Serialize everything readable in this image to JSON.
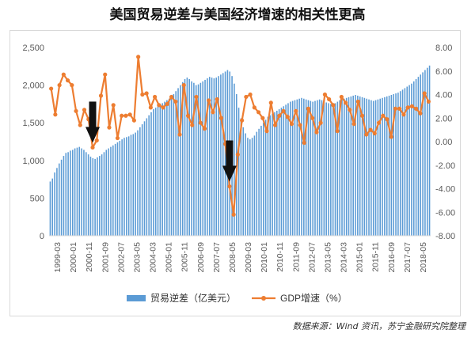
{
  "title": "美国贸易逆差与美国经济增速的相关性更高",
  "source": "数据来源：Wind 资讯，苏宁金融研究院整理",
  "colors": {
    "bar": "#5B9BD5",
    "line": "#ED7D31",
    "axis": "#595959",
    "grid": "#d9d9d9",
    "arrow": "#111111"
  },
  "chart_data": {
    "type": "bar",
    "grid": false,
    "legend": "bottom",
    "left_axis": {
      "ylim": [
        0,
        2500
      ],
      "ticks": [
        "0",
        "500",
        "1,000",
        "1,500",
        "2,000",
        "2,500"
      ]
    },
    "right_axis": {
      "ylim": [
        -8,
        8
      ],
      "ticks": [
        "-8.00",
        "-6.00",
        "-4.00",
        "-2.00",
        "0.00",
        "2.00",
        "4.00",
        "6.00",
        "8.00"
      ]
    },
    "x_tick_labels": [
      "1999-03",
      "2000-01",
      "2000-11",
      "2001-09",
      "2002-07",
      "2003-05",
      "2004-03",
      "2005-01",
      "2005-11",
      "2006-09",
      "2007-07",
      "2008-05",
      "2009-03",
      "2010-01",
      "2010-11",
      "2011-09",
      "2012-07",
      "2013-05",
      "2014-03",
      "2015-01",
      "2015-11",
      "2016-09",
      "2017-07",
      "2018-05"
    ],
    "series": [
      {
        "name": "贸易逆差（亿美元）",
        "axis": "left",
        "values": [
          720,
          760,
          840,
          900,
          960,
          1010,
          1060,
          1100,
          1110,
          1130,
          1140,
          1160,
          1170,
          1180,
          1160,
          1140,
          1110,
          1080,
          1050,
          1030,
          1020,
          1040,
          1060,
          1080,
          1110,
          1140,
          1160,
          1180,
          1200,
          1220,
          1240,
          1260,
          1280,
          1300,
          1310,
          1320,
          1340,
          1350,
          1370,
          1400,
          1440,
          1480,
          1520,
          1560,
          1600,
          1640,
          1680,
          1700,
          1720,
          1740,
          1760,
          1780,
          1800,
          1820,
          1840,
          1880,
          1920,
          1960,
          2000,
          2040,
          2080,
          2100,
          2080,
          2050,
          2030,
          2000,
          2010,
          2030,
          2050,
          2070,
          2090,
          2110,
          2100,
          2090,
          2100,
          2120,
          2140,
          2160,
          2180,
          2200,
          2180,
          2120,
          2020,
          1880,
          1700,
          1560,
          1440,
          1360,
          1300,
          1280,
          1300,
          1330,
          1380,
          1420,
          1460,
          1500,
          1540,
          1580,
          1600,
          1620,
          1640,
          1660,
          1680,
          1700,
          1720,
          1740,
          1760,
          1780,
          1790,
          1800,
          1810,
          1820,
          1830,
          1820,
          1810,
          1800,
          1790,
          1780,
          1790,
          1800,
          1810,
          1800,
          1790,
          1770,
          1760,
          1750,
          1750,
          1760,
          1780,
          1800,
          1810,
          1820,
          1830,
          1840,
          1850,
          1860,
          1870,
          1860,
          1850,
          1840,
          1830,
          1820,
          1810,
          1800,
          1790,
          1800,
          1810,
          1820,
          1830,
          1840,
          1850,
          1860,
          1870,
          1880,
          1890,
          1900,
          1920,
          1940,
          1960,
          1980,
          2000,
          2020,
          2050,
          2080,
          2110,
          2140,
          2170,
          2200,
          2230,
          2260
        ]
      },
      {
        "name": "GDP增速（%）",
        "axis": "right",
        "values": [
          4.5,
          2.3,
          4.8,
          5.7,
          5.2,
          4.8,
          2.6,
          1.4,
          2.7,
          1.9,
          -0.5,
          0.1,
          3.9,
          5.7,
          1.2,
          3.1,
          0.3,
          2.2,
          2.2,
          2.3,
          1.8,
          7.2,
          4.0,
          4.1,
          2.9,
          3.8,
          3.1,
          2.9,
          3.2,
          3.8,
          3.4,
          0.6,
          4.8,
          2.2,
          1.4,
          3.8,
          1.6,
          1.1,
          3.5,
          2.5,
          3.6,
          2.0,
          -0.2,
          -3.8,
          -6.2,
          -1.1,
          1.8,
          3.8,
          4.0,
          2.9,
          2.5,
          2.0,
          0.9,
          3.3,
          1.4,
          2.2,
          2.6,
          2.1,
          1.5,
          2.6,
          1.4,
          -0.1,
          2.8,
          2.0,
          0.8,
          1.6,
          4.0,
          3.6,
          3.1,
          0.9,
          3.8,
          3.3,
          2.7,
          1.5,
          3.4,
          2.2,
          0.6,
          1.0,
          0.7,
          1.6,
          2.2,
          1.9,
          0.4,
          2.8,
          2.8,
          2.3,
          2.9,
          3.0,
          2.8,
          2.4,
          4.1,
          3.4
        ]
      }
    ],
    "annotations": [
      {
        "type": "arrow-down",
        "target_series": "GDP增速（%）",
        "target_index": 10
      },
      {
        "type": "arrow-down",
        "target_series": "GDP增速（%）",
        "target_index": 43
      }
    ]
  }
}
